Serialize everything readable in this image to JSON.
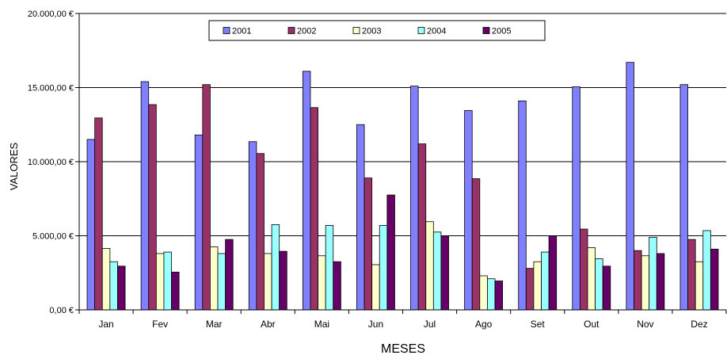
{
  "chart_data": {
    "type": "bar",
    "xlabel": "MESES",
    "ylabel": "VALORES",
    "ylim": [
      0,
      20000
    ],
    "yticks": [
      0,
      5000,
      10000,
      15000,
      20000
    ],
    "ytick_labels": [
      "0,00 €",
      "5.000,00 €",
      "10.000,00 €",
      "15.000,00 €",
      "20.000,00 €"
    ],
    "grid": "horizontal",
    "legend_position": "top",
    "categories": [
      "Jan",
      "Fev",
      "Mar",
      "Abr",
      "Mai",
      "Jun",
      "Jul",
      "Ago",
      "Set",
      "Out",
      "Nov",
      "Dez"
    ],
    "series": [
      {
        "name": "2001",
        "color": "#8080FF",
        "values": [
          11500,
          15400,
          11800,
          11350,
          16100,
          12500,
          15100,
          13450,
          14100,
          15050,
          16700,
          15200
        ]
      },
      {
        "name": "2002",
        "color": "#993366",
        "values": [
          12950,
          13850,
          15200,
          10550,
          13650,
          8900,
          11200,
          8850,
          2800,
          5450,
          4000,
          4750
        ]
      },
      {
        "name": "2003",
        "color": "#FFFFCC",
        "values": [
          4150,
          3800,
          4250,
          3800,
          3650,
          3050,
          5950,
          2300,
          3250,
          4200,
          3650,
          3250
        ]
      },
      {
        "name": "2004",
        "color": "#99FFFF",
        "values": [
          3250,
          3900,
          3800,
          5750,
          5700,
          5700,
          5250,
          2100,
          3900,
          3450,
          4900,
          5350
        ]
      },
      {
        "name": "2005",
        "color": "#660066",
        "values": [
          2950,
          2550,
          4750,
          3950,
          3250,
          7750,
          5000,
          1950,
          5000,
          2950,
          3800,
          4100
        ]
      }
    ]
  }
}
